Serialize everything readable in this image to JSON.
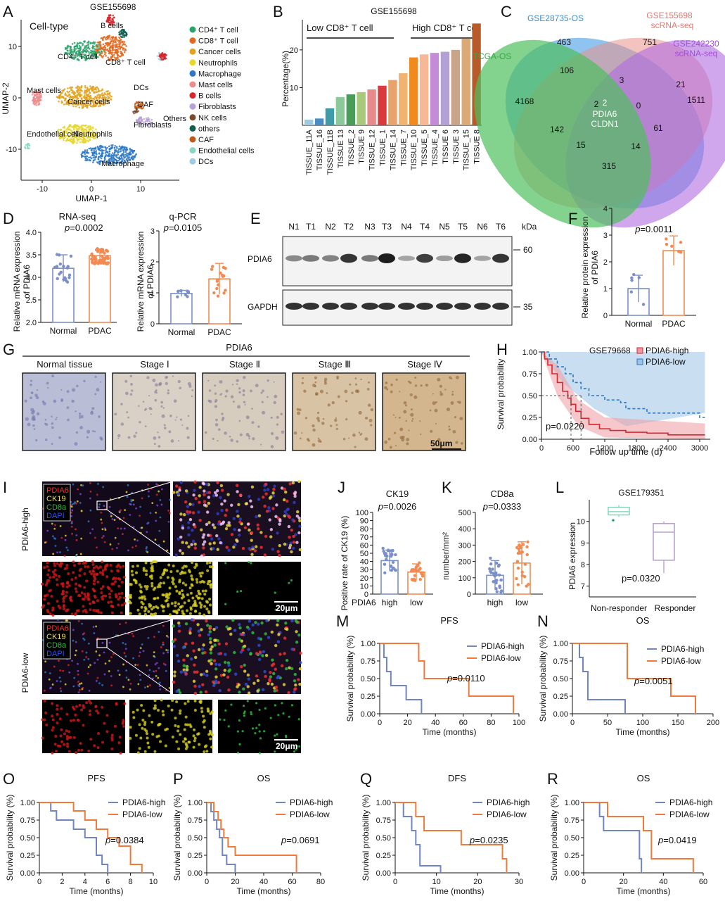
{
  "panels": {
    "A": {
      "label": "A",
      "dataset": "GSE155698",
      "title": "Cell-type",
      "xlabel": "UMAP-1",
      "ylabel": "UMAP-2",
      "xticks": [
        "-10",
        "0",
        "10"
      ],
      "yticks": [
        "10",
        "0",
        "-10"
      ],
      "cluster_labels": [
        "B cells",
        "CD4⁺ T cell",
        "CD8⁺ T cell",
        "Mast cells",
        "Cancer cells",
        "DCs",
        "CAF",
        "Others",
        "Fibroblasts",
        "Endothelial cells",
        "Neutrophils",
        "Macrophage"
      ],
      "legend": [
        {
          "name": "CD4⁺ T cell",
          "color": "#2ca36b"
        },
        {
          "name": "CD8⁺ T cell",
          "color": "#e2691f"
        },
        {
          "name": "Cancer cells",
          "color": "#e2a21f"
        },
        {
          "name": "Neutrophils",
          "color": "#e8d62b"
        },
        {
          "name": "Macrophage",
          "color": "#2d78c4"
        },
        {
          "name": "Mast cells",
          "color": "#ee8c8c"
        },
        {
          "name": "B cells",
          "color": "#d7262c"
        },
        {
          "name": "Fibroblasts",
          "color": "#b7a1d6"
        },
        {
          "name": "NK cells",
          "color": "#7b4a2e"
        },
        {
          "name": "others",
          "color": "#0f5e4f"
        },
        {
          "name": "CAF",
          "color": "#c05a18"
        },
        {
          "name": "Endothelial cells",
          "color": "#8ad6c3"
        },
        {
          "name": "DCs",
          "color": "#9ecbe3"
        }
      ]
    },
    "B": {
      "label": "B",
      "title": "GSE155698",
      "low_label": "Low CD8⁺ T cell",
      "high_label": "High CD8⁺ T cell",
      "ylabel": "Percentage(%)"
    },
    "C": {
      "label": "C",
      "sets": [
        "GSE28735-OS",
        "GSE155698\nscRNA-seq",
        "GSE242230\nscRNA-seq",
        "TCGA-OS"
      ],
      "numbers": [
        "463",
        "751",
        "1511",
        "4168",
        "106",
        "3",
        "21",
        "2",
        "0",
        "142",
        "61",
        "15",
        "14",
        "315",
        "2"
      ],
      "genes": [
        "PDIA6",
        "CLDN1"
      ]
    },
    "D": {
      "label": "D",
      "left_title": "RNA-seq",
      "left_p": "=0.0002",
      "right_title": "q-PCR",
      "right_p": "=0.0105",
      "ylabel": "Relative mRNA expression\nof PDIA6",
      "groups": [
        "Normal",
        "PDAC"
      ]
    },
    "E": {
      "label": "E",
      "lanes": [
        "N1",
        "T1",
        "N2",
        "T2",
        "N3",
        "T3",
        "N4",
        "T4",
        "N5",
        "T5",
        "N6",
        "T6"
      ],
      "unit": "kDa",
      "proteins": [
        "PDIA6",
        "GAPDH"
      ],
      "markers": [
        "60",
        "35"
      ]
    },
    "F": {
      "label": "F",
      "p": "=0.0011",
      "ylabel": "Relative protein expression\nof PDIA6",
      "groups": [
        "Normal",
        "PDAC"
      ]
    },
    "G": {
      "label": "G",
      "title": "PDIA6",
      "stages": [
        "Normal tissue",
        "Stage Ⅰ",
        "Stage Ⅱ",
        "Stage Ⅲ",
        "Stage Ⅳ"
      ],
      "scale": "50μm"
    },
    "H": {
      "label": "H",
      "dataset": "GSE79668",
      "legend": [
        "PDIA6-high",
        "PDIA6-low"
      ],
      "p": "p=0.0220",
      "xlabel": "Follow up time (d)",
      "ylabel": "Survival probability"
    },
    "I": {
      "label": "I",
      "channels": [
        "PDIA6",
        "CK19",
        "CD8a",
        "DAPI"
      ],
      "groups": [
        "PDIA6-high",
        "PDIA6-low"
      ],
      "scale": "20μm"
    },
    "J": {
      "label": "J",
      "title": "CK19",
      "p": "=0.0026",
      "ylabel": "Positive rate of CK19 (%)",
      "group_prefix": "PDIA6",
      "groups": [
        "high",
        "low"
      ]
    },
    "K": {
      "label": "K",
      "title": "CD8a",
      "p": "=0.0333",
      "ylabel": "number/mm²",
      "groups": [
        "high",
        "low"
      ]
    },
    "L": {
      "label": "L",
      "title": "GSE179351",
      "p": "p=0.0320",
      "ylabel": "PDIA6 expression",
      "groups": [
        "Non-responder",
        "Responder"
      ]
    },
    "M": {
      "label": "M",
      "title": "PFS",
      "p": "=0.0110",
      "xlabel": "Time (months)"
    },
    "N": {
      "label": "N",
      "title": "OS",
      "p": "=0.0051",
      "xlabel": "Time (months)"
    },
    "O": {
      "label": "O",
      "title": "PFS",
      "p": "=0.0384",
      "xlabel": "Time (months)"
    },
    "P": {
      "label": "P",
      "title": "OS",
      "p": "=0.0691",
      "xlabel": "Time (months)"
    },
    "Q": {
      "label": "Q",
      "title": "DFS",
      "p": "=0.0235",
      "xlabel": "Time (months)"
    },
    "R": {
      "label": "R",
      "title": "OS",
      "p": "=0.0419",
      "xlabel": "Time (months)"
    },
    "km_common": {
      "legend": [
        "PDIA6-high",
        "PDIA6-low"
      ],
      "ylabel": "Survival probability (%)"
    }
  },
  "colors": {
    "high": "#6f86c3",
    "low": "#f07a3c",
    "normal_bar": "#7b8fc8",
    "pdac_bar": "#f28a52"
  },
  "chart_data": [
    {
      "panel": "B",
      "type": "bar",
      "categories": [
        "TISSUE_11A",
        "TISSUE_16",
        "TISSUE_11B",
        "TISSUE 13",
        "TISSUE_2",
        "TISSUE 9",
        "TISSUE_12",
        "TISSUE_1",
        "TISSUE_14",
        "TISSUE_7",
        "TISSUE_10",
        "TISSUE_5",
        "TISSUE_4",
        "TISSUE 6",
        "TISSUE 3",
        "TISSUE_15",
        "TISSUE 8"
      ],
      "values": [
        1.5,
        1.8,
        4.5,
        7.5,
        8.2,
        8.8,
        9.5,
        10.5,
        12,
        13.8,
        18,
        18.8,
        19.2,
        19.5,
        20,
        23,
        27
      ],
      "colors": [
        "#9ecbe3",
        "#4a8cc5",
        "#3f9ba8",
        "#8bc89a",
        "#4a9d59",
        "#a9c97a",
        "#e68a8a",
        "#d93a3e",
        "#e8a26b",
        "#f2b270",
        "#f08a1e",
        "#f7b898",
        "#c48cd6",
        "#b3a0d6",
        "#c9a489",
        "#dba976",
        "#b85b2a"
      ],
      "yticks": [
        10,
        20
      ],
      "ylim": [
        0,
        28
      ]
    },
    {
      "panel": "D-left",
      "type": "bar",
      "categories": [
        "Normal",
        "PDAC"
      ],
      "values": [
        3.2,
        3.48
      ],
      "ylim": [
        2.0,
        4.0
      ],
      "yticks": [
        2.0,
        2.5,
        3.0,
        3.5,
        4.0
      ]
    },
    {
      "panel": "D-right",
      "type": "bar",
      "categories": [
        "Normal",
        "PDAC"
      ],
      "values": [
        0.98,
        1.45
      ],
      "ylim": [
        0,
        3
      ],
      "yticks": [
        0,
        1,
        2,
        3
      ]
    },
    {
      "panel": "F",
      "type": "bar",
      "categories": [
        "Normal",
        "PDAC"
      ],
      "values": [
        1.0,
        2.42
      ],
      "ylim": [
        0,
        4
      ],
      "yticks": [
        0,
        1,
        2,
        3,
        4
      ]
    },
    {
      "panel": "J",
      "type": "bar",
      "categories": [
        "high",
        "low"
      ],
      "values": [
        41,
        27
      ],
      "ylim": [
        0,
        100
      ],
      "yticks": [
        0,
        10,
        20,
        30,
        40,
        50,
        60,
        70,
        80,
        90,
        100
      ]
    },
    {
      "panel": "K",
      "type": "bar",
      "categories": [
        "high",
        "low"
      ],
      "values": [
        115,
        190
      ],
      "ylim": [
        0,
        500
      ],
      "yticks": [
        0,
        100,
        200,
        300,
        400,
        500
      ]
    },
    {
      "panel": "L",
      "type": "box",
      "categories": [
        "Non-responder",
        "Responder"
      ],
      "medians": [
        10.45,
        9.5
      ],
      "q1": [
        10.3,
        8.2
      ],
      "q3": [
        10.65,
        9.9
      ],
      "ylim": [
        6.5,
        11
      ],
      "yticks": [
        7,
        8,
        9,
        10
      ]
    },
    {
      "panel": "H",
      "type": "line",
      "xticks": [
        0,
        600,
        1200,
        1800,
        2400,
        3000
      ],
      "yticks": [
        0.0,
        0.25,
        0.5,
        0.75,
        1.0
      ],
      "xlim": [
        0,
        3200
      ],
      "ylim": [
        0,
        1.0
      ],
      "series": [
        {
          "name": "PDIA6-high",
          "x": [
            0,
            60,
            120,
            200,
            300,
            400,
            500,
            560,
            650,
            750,
            900,
            1100,
            1300,
            1600,
            2000,
            2400,
            2800,
            3100
          ],
          "y": [
            1.0,
            0.92,
            0.85,
            0.75,
            0.65,
            0.55,
            0.47,
            0.4,
            0.32,
            0.24,
            0.17,
            0.12,
            0.1,
            0.08,
            0.07,
            0.05,
            0.05,
            0.05
          ]
        },
        {
          "name": "PDIA6-low",
          "x": [
            0,
            150,
            300,
            450,
            600,
            750,
            900,
            1200,
            1500,
            1600,
            2000,
            2500,
            3000,
            3100
          ],
          "y": [
            1.0,
            0.92,
            0.83,
            0.75,
            0.65,
            0.58,
            0.5,
            0.45,
            0.42,
            0.35,
            0.3,
            0.3,
            0.25,
            0.25
          ]
        }
      ]
    },
    {
      "panel": "M",
      "type": "line",
      "xticks": [
        0,
        20,
        40,
        60,
        80,
        100
      ],
      "yticks": [
        0.0,
        0.25,
        0.5,
        0.75,
        1.0
      ],
      "xlim": [
        0,
        100
      ],
      "ylim": [
        0,
        1.0
      ],
      "series": [
        {
          "name": "PDIA6-high",
          "x": [
            0,
            2,
            3,
            5,
            8,
            19,
            29,
            30
          ],
          "y": [
            1.0,
            1.0,
            0.8,
            0.6,
            0.4,
            0.2,
            0.2,
            0.0
          ]
        },
        {
          "name": "PDIA6-low",
          "x": [
            0,
            27,
            28,
            32,
            64,
            96
          ],
          "y": [
            1.0,
            1.0,
            0.75,
            0.5,
            0.25,
            0.0
          ]
        }
      ]
    },
    {
      "panel": "N",
      "type": "line",
      "xticks": [
        0,
        50,
        100,
        150,
        200
      ],
      "yticks": [
        0.0,
        0.25,
        0.5,
        0.75,
        1.0
      ],
      "xlim": [
        0,
        200
      ],
      "ylim": [
        0,
        1.0
      ],
      "series": [
        {
          "name": "PDIA6-high",
          "x": [
            0,
            5,
            10,
            15,
            22,
            73,
            75
          ],
          "y": [
            1.0,
            1.0,
            0.8,
            0.6,
            0.2,
            0.2,
            0.0
          ]
        },
        {
          "name": "PDIA6-low",
          "x": [
            0,
            72,
            78,
            140,
            175
          ],
          "y": [
            1.0,
            1.0,
            0.5,
            0.25,
            0.0
          ]
        }
      ]
    },
    {
      "panel": "O",
      "type": "line",
      "xticks": [
        0,
        2,
        4,
        6,
        8,
        10
      ],
      "yticks": [
        0.0,
        0.25,
        0.5,
        0.75,
        1.0
      ],
      "xlim": [
        0,
        10
      ],
      "ylim": [
        0,
        1.0
      ],
      "series": [
        {
          "name": "PDIA6-high",
          "x": [
            0,
            1,
            1.5,
            3,
            4,
            5,
            5.5,
            6
          ],
          "y": [
            1.0,
            0.88,
            0.75,
            0.62,
            0.5,
            0.25,
            0.12,
            0.0
          ]
        },
        {
          "name": "PDIA6-low",
          "x": [
            0,
            3,
            4,
            5,
            6,
            7,
            8,
            9
          ],
          "y": [
            1.0,
            0.88,
            0.75,
            0.62,
            0.5,
            0.38,
            0.12,
            0.0
          ]
        }
      ]
    },
    {
      "panel": "P",
      "type": "line",
      "xticks": [
        0,
        20,
        40,
        60,
        80
      ],
      "yticks": [
        0.0,
        0.25,
        0.5,
        0.75,
        1.0
      ],
      "xlim": [
        0,
        80
      ],
      "ylim": [
        0,
        1.0
      ],
      "series": [
        {
          "name": "PDIA6-high",
          "x": [
            0,
            3,
            5,
            7,
            9,
            11,
            14,
            17,
            20
          ],
          "y": [
            1.0,
            0.87,
            0.75,
            0.62,
            0.5,
            0.25,
            0.12,
            0.12,
            0.0
          ]
        },
        {
          "name": "PDIA6-low",
          "x": [
            0,
            5,
            8,
            10,
            12,
            15,
            20,
            63
          ],
          "y": [
            1.0,
            0.87,
            0.75,
            0.62,
            0.5,
            0.37,
            0.25,
            0.0
          ]
        }
      ]
    },
    {
      "panel": "Q",
      "type": "line",
      "xticks": [
        0,
        10,
        20,
        30
      ],
      "yticks": [
        0.0,
        0.25,
        0.5,
        0.75,
        1.0
      ],
      "xlim": [
        0,
        30
      ],
      "ylim": [
        0,
        1.0
      ],
      "series": [
        {
          "name": "PDIA6-high",
          "x": [
            0,
            2,
            4,
            5,
            6,
            11
          ],
          "y": [
            1.0,
            0.8,
            0.6,
            0.4,
            0.1,
            0.0
          ]
        },
        {
          "name": "PDIA6-low",
          "x": [
            0,
            5,
            7,
            16,
            26,
            27
          ],
          "y": [
            1.0,
            0.8,
            0.6,
            0.4,
            0.2,
            0.0
          ]
        }
      ]
    },
    {
      "panel": "R",
      "type": "line",
      "xticks": [
        0,
        20,
        40,
        60
      ],
      "yticks": [
        0.0,
        0.25,
        0.5,
        0.75,
        1.0
      ],
      "xlim": [
        0,
        60
      ],
      "ylim": [
        0,
        1.0
      ],
      "series": [
        {
          "name": "PDIA6-high",
          "x": [
            0,
            8,
            10,
            20,
            28,
            29
          ],
          "y": [
            1.0,
            0.8,
            0.6,
            0.6,
            0.2,
            0.0
          ]
        },
        {
          "name": "PDIA6-low",
          "x": [
            0,
            12,
            20,
            30,
            34,
            55
          ],
          "y": [
            1.0,
            0.8,
            0.8,
            0.6,
            0.2,
            0.0
          ]
        }
      ]
    }
  ]
}
